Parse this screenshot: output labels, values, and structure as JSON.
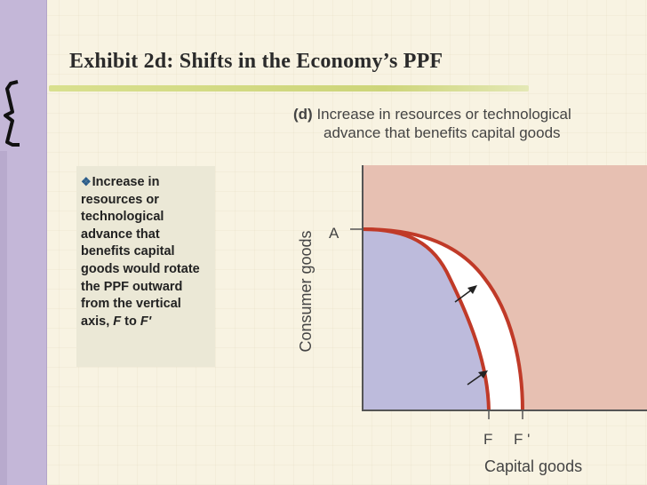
{
  "slide": {
    "title": "Exhibit 2d: Shifts in the Economy’s PPF",
    "bullet_text": "Increase in resources or technological advance that benefits capital goods would rotate the PPF outward from the vertical axis, ",
    "bullet_from": "F",
    "bullet_to_word": " to ",
    "bullet_to": "F'"
  },
  "figure": {
    "panel_letter": "(d)",
    "caption_line1": " Increase in resources or technological",
    "caption_line2": "advance that benefits capital goods",
    "y_axis_label": "Consumer goods",
    "x_axis_label": "Capital goods",
    "point_A": "A",
    "point_F": "F",
    "point_F_prime": "F '"
  },
  "colors": {
    "old_region": "#bdbbdc",
    "new_region": "#ffffff",
    "outside_region": "#e7c0b2",
    "curve": "#c03a28",
    "axes": "#555555"
  }
}
